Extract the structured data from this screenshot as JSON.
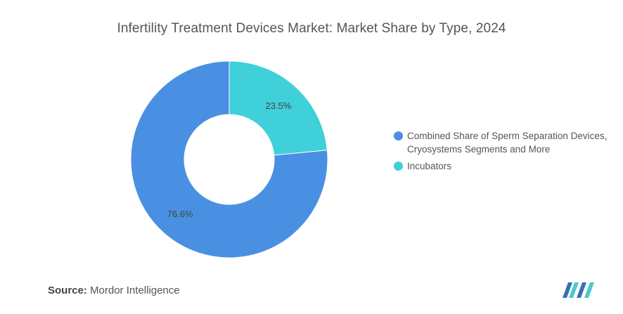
{
  "title": "Infertility Treatment Devices Market: Market Share by Type, 2024",
  "chart_data": {
    "type": "pie",
    "donut": true,
    "title": "Infertility Treatment Devices Market: Market Share by Type, 2024",
    "series": [
      {
        "name": "Combined Share of Sperm Separation Devices, Cryosystems Segments and More",
        "value": 76.6,
        "label": "76.6%",
        "color": "#4A90E2"
      },
      {
        "name": "Incubators",
        "value": 23.5,
        "label": "23.5%",
        "color": "#3FD0D9"
      }
    ],
    "legend_position": "right"
  },
  "source": {
    "key": "Source:",
    "value": "Mordor Intelligence"
  },
  "logo": {
    "icon": "mordor-intelligence-logo-icon",
    "colors": [
      "#3B6FB0",
      "#4BC8D0"
    ]
  }
}
